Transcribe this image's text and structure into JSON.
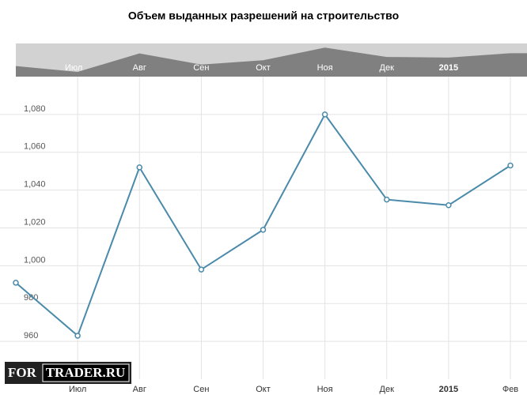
{
  "chart_data": {
    "type": "line",
    "title": "Объем выданных разрешений на строительство",
    "categories": [
      null,
      "Июл",
      "Авг",
      "Сен",
      "Окт",
      "Ноя",
      "Дек",
      "2015",
      "Фев"
    ],
    "values": [
      991,
      963,
      1052,
      998,
      1019,
      1080,
      1035,
      1032,
      1053
    ],
    "color": "#4a8aaa",
    "ylim": [
      940,
      1100
    ],
    "yticks": [
      960,
      980,
      {
        "value": 1000,
        "label": "1,000"
      },
      {
        "value": 1020,
        "label": "1,020"
      },
      {
        "value": 1040,
        "label": "1,040"
      },
      {
        "value": 1060,
        "label": "1,060"
      },
      {
        "value": 1080,
        "label": "1,080"
      }
    ],
    "grid": true,
    "navigator": {
      "labels": [
        "Июл",
        "Авг",
        "Сен",
        "Окт",
        "Ноя",
        "Дек",
        "2015"
      ]
    }
  },
  "watermark": {
    "left": "FOR",
    "right": "TRADER.RU"
  }
}
